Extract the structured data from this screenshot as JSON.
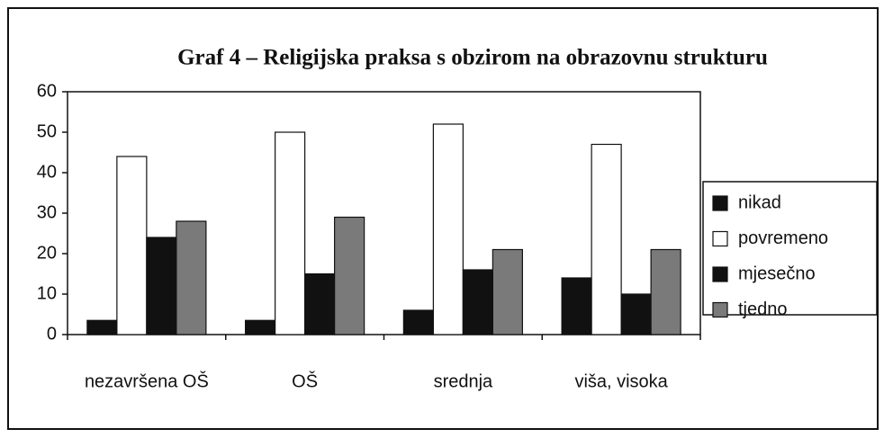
{
  "chart_data": {
    "type": "bar",
    "title": "Graf 4 – Religijska praksa s obzirom na obrazovnu strukturu",
    "categories": [
      "nezavršena OŠ",
      "OŠ",
      "srednja",
      "viša, visoka"
    ],
    "series": [
      {
        "name": "nikad",
        "color": "#111111",
        "values": [
          3.5,
          3.5,
          6,
          14
        ]
      },
      {
        "name": "povremeno",
        "color": "#ffffff",
        "values": [
          44,
          50,
          52,
          47
        ]
      },
      {
        "name": "mjesečno",
        "color": "#111111",
        "values": [
          24,
          15,
          16,
          10
        ]
      },
      {
        "name": "tjedno",
        "color": "#7a7a7a",
        "values": [
          28,
          29,
          21,
          21
        ]
      }
    ],
    "ylim": [
      0,
      60
    ],
    "yticks": [
      0,
      10,
      20,
      30,
      40,
      50,
      60
    ],
    "grid": false,
    "legend": "right"
  }
}
